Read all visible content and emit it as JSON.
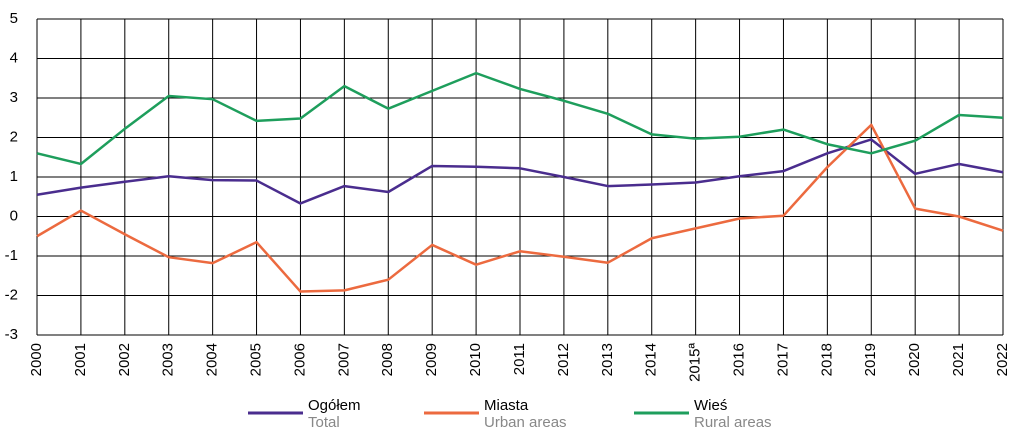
{
  "chart_data": {
    "type": "line",
    "categories": [
      "2000",
      "2001",
      "2002",
      "2003",
      "2004",
      "2005",
      "2006",
      "2007",
      "2008",
      "2009",
      "2010",
      "2011",
      "2012",
      "2013",
      "2014",
      "2015ª",
      "2016",
      "2017",
      "2018",
      "2019",
      "2020",
      "2021",
      "2022"
    ],
    "series": [
      {
        "name": "Ogółem",
        "name_en": "Total",
        "color": "#4a2d8e",
        "values": [
          0.55,
          0.73,
          0.88,
          1.02,
          0.92,
          0.91,
          0.33,
          0.77,
          0.62,
          1.28,
          1.26,
          1.22,
          1.0,
          0.77,
          0.81,
          0.86,
          1.02,
          1.15,
          1.6,
          1.95,
          1.08,
          1.33,
          1.12
        ]
      },
      {
        "name": "Miasta",
        "name_en": "Urban areas",
        "color": "#ec6a3f",
        "values": [
          -0.5,
          0.15,
          -0.45,
          -1.03,
          -1.18,
          -0.65,
          -1.9,
          -1.87,
          -1.6,
          -0.72,
          -1.22,
          -0.88,
          -1.02,
          -1.17,
          -0.55,
          -0.3,
          -0.05,
          0.02,
          1.25,
          2.32,
          0.2,
          0.0,
          -0.36
        ]
      },
      {
        "name": "Wieś",
        "name_en": "Rural areas",
        "color": "#1e9e5c",
        "values": [
          1.6,
          1.33,
          2.22,
          3.05,
          2.97,
          2.42,
          2.48,
          3.3,
          2.73,
          3.18,
          3.63,
          3.23,
          2.93,
          2.6,
          2.08,
          1.97,
          2.02,
          2.2,
          1.83,
          1.6,
          1.92,
          2.57,
          2.5
        ]
      }
    ],
    "ylim": [
      -3,
      5
    ],
    "yticks": [
      -3,
      -2,
      -1,
      0,
      1,
      2,
      3,
      4,
      5
    ],
    "grid": true,
    "legend": "bottom"
  }
}
